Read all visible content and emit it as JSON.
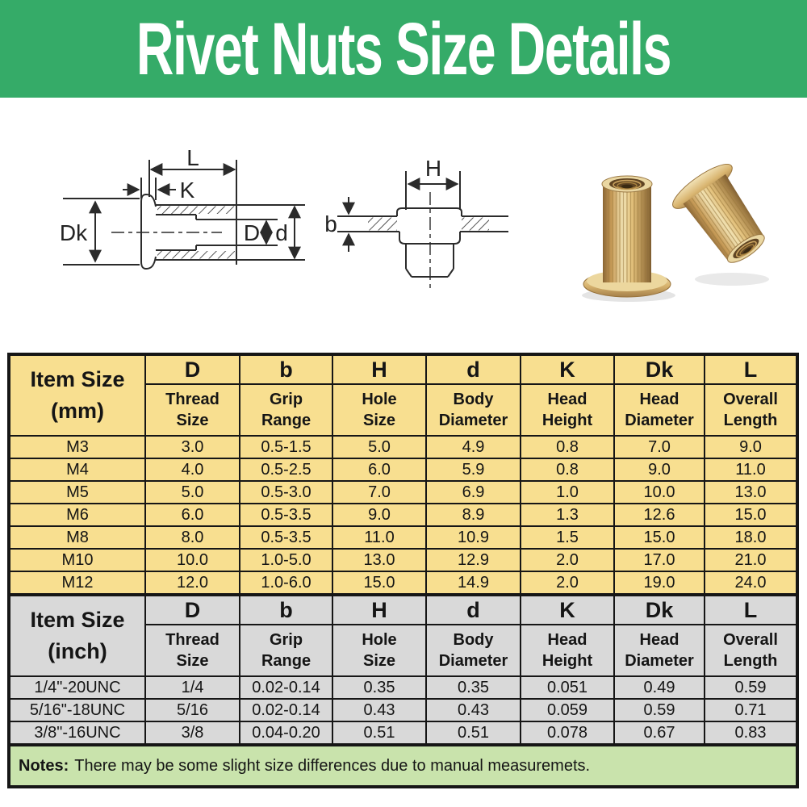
{
  "title": "Rivet Nuts Size Details",
  "figures": {
    "section_view_labels": {
      "overall_length": "L",
      "head_height": "K",
      "head_diameter": "Dk",
      "thread_diameter": "D",
      "body_diameter": "d"
    },
    "installed_view_labels": {
      "hole_size": "H",
      "grip_thickness": "b"
    }
  },
  "table_mm": {
    "item_header": "Item Size\n(mm)",
    "symbols": [
      "D",
      "b",
      "H",
      "d",
      "K",
      "Dk",
      "L"
    ],
    "sublabels": [
      "Thread\nSize",
      "Grip\nRange",
      "Hole\nSize",
      "Body\nDiameter",
      "Head\nHeight",
      "Head\nDiameter",
      "Overall\nLength"
    ],
    "rows": [
      [
        "M3",
        "3.0",
        "0.5-1.5",
        "5.0",
        "4.9",
        "0.8",
        "7.0",
        "9.0"
      ],
      [
        "M4",
        "4.0",
        "0.5-2.5",
        "6.0",
        "5.9",
        "0.8",
        "9.0",
        "11.0"
      ],
      [
        "M5",
        "5.0",
        "0.5-3.0",
        "7.0",
        "6.9",
        "1.0",
        "10.0",
        "13.0"
      ],
      [
        "M6",
        "6.0",
        "0.5-3.5",
        "9.0",
        "8.9",
        "1.3",
        "12.6",
        "15.0"
      ],
      [
        "M8",
        "8.0",
        "0.5-3.5",
        "11.0",
        "10.9",
        "1.5",
        "15.0",
        "18.0"
      ],
      [
        "M10",
        "10.0",
        "1.0-5.0",
        "13.0",
        "12.9",
        "2.0",
        "17.0",
        "21.0"
      ],
      [
        "M12",
        "12.0",
        "1.0-6.0",
        "15.0",
        "14.9",
        "2.0",
        "19.0",
        "24.0"
      ]
    ]
  },
  "table_inch": {
    "item_header": "Item Size\n(inch)",
    "symbols": [
      "D",
      "b",
      "H",
      "d",
      "K",
      "Dk",
      "L"
    ],
    "sublabels": [
      "Thread\nSize",
      "Grip\nRange",
      "Hole\nSize",
      "Body\nDiameter",
      "Head\nHeight",
      "Head\nDiameter",
      "Overall\nLength"
    ],
    "rows": [
      [
        "1/4\"-20UNC",
        "1/4",
        "0.02-0.14",
        "0.35",
        "0.35",
        "0.051",
        "0.49",
        "0.59"
      ],
      [
        "5/16\"-18UNC",
        "5/16",
        "0.02-0.14",
        "0.43",
        "0.43",
        "0.059",
        "0.59",
        "0.71"
      ],
      [
        "3/8\"-16UNC",
        "3/8",
        "0.04-0.20",
        "0.51",
        "0.51",
        "0.078",
        "0.67",
        "0.83"
      ]
    ]
  },
  "notes": {
    "label": "Notes:",
    "text": "There may be some slight size differences due to manual measuremets."
  },
  "colors": {
    "banner_green": "#35ab68",
    "metric_row_bg": "#f8df90",
    "inch_row_bg": "#d9d9d9",
    "notes_bg": "#c9e3ac",
    "table_border": "#161616"
  }
}
